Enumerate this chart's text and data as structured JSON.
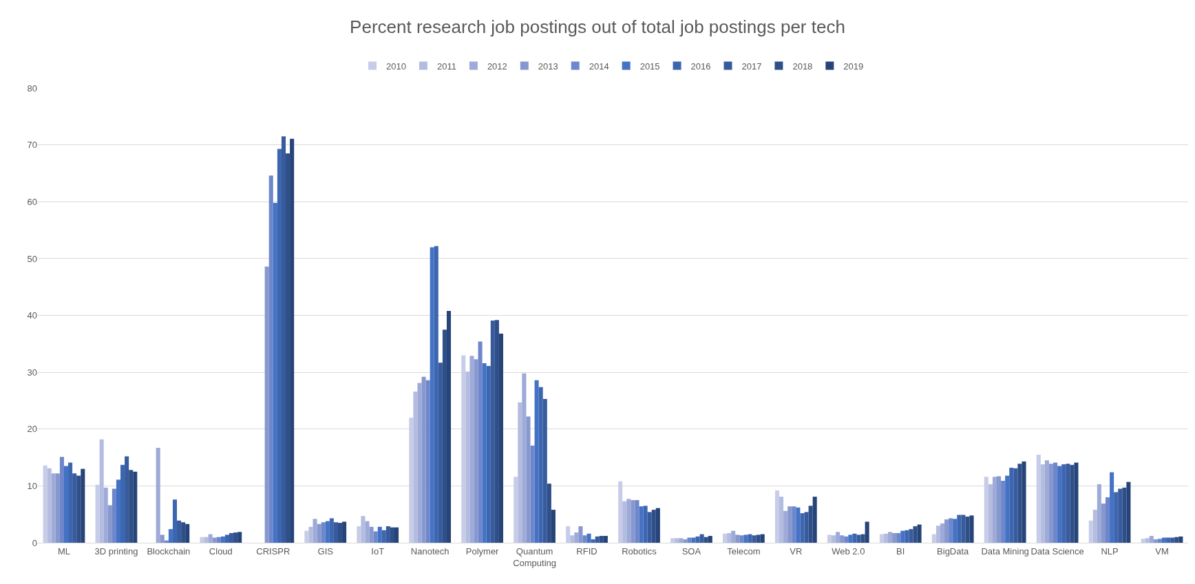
{
  "chart_data": {
    "type": "bar",
    "title": "Percent research job postings out of total job postings per tech",
    "categories": [
      "ML",
      "3D printing",
      "Blockchain",
      "Cloud",
      "CRISPR",
      "GIS",
      "IoT",
      "Nanotech",
      "Polymer",
      "Quantum Computing",
      "RFID",
      "Robotics",
      "SOA",
      "Telecom",
      "VR",
      "Web 2.0",
      "BI",
      "BigData",
      "Data Mining",
      "Data Science",
      "NLP",
      "VM"
    ],
    "series": [
      {
        "name": "2010",
        "color": "#c7cde8",
        "values": [
          13.6,
          10.2,
          null,
          1.0,
          null,
          2.1,
          2.9,
          22.0,
          33.0,
          11.6,
          2.9,
          10.8,
          0.8,
          1.6,
          9.2,
          1.4,
          1.5,
          1.5,
          11.6,
          15.5,
          3.9,
          0.7
        ]
      },
      {
        "name": "2011",
        "color": "#b4bde0",
        "values": [
          13.1,
          18.2,
          null,
          1.0,
          null,
          2.8,
          4.7,
          26.6,
          30.1,
          24.7,
          1.3,
          7.3,
          0.8,
          1.7,
          8.1,
          1.3,
          1.6,
          3.0,
          10.3,
          13.8,
          5.8,
          0.8
        ]
      },
      {
        "name": "2012",
        "color": "#9eaad8",
        "values": [
          12.2,
          9.7,
          16.7,
          1.5,
          null,
          4.2,
          3.8,
          28.1,
          32.9,
          29.8,
          1.8,
          7.7,
          0.8,
          2.1,
          5.6,
          1.9,
          1.9,
          3.4,
          11.6,
          14.5,
          10.3,
          1.2
        ]
      },
      {
        "name": "2013",
        "color": "#8798cf",
        "values": [
          12.2,
          6.6,
          1.4,
          0.9,
          48.6,
          3.3,
          2.8,
          29.2,
          32.3,
          22.2,
          2.9,
          7.5,
          0.6,
          1.4,
          6.4,
          1.3,
          1.7,
          4.1,
          11.7,
          13.9,
          6.9,
          0.6
        ]
      },
      {
        "name": "2014",
        "color": "#6e87cc",
        "values": [
          15.1,
          9.5,
          0.4,
          1.0,
          64.6,
          3.6,
          2.0,
          28.6,
          35.4,
          17.1,
          1.3,
          7.5,
          0.9,
          1.3,
          6.4,
          1.1,
          1.7,
          4.3,
          10.9,
          14.1,
          8.0,
          0.7
        ]
      },
      {
        "name": "2015",
        "color": "#4472c4",
        "values": [
          13.5,
          11.1,
          2.4,
          1.1,
          59.8,
          3.8,
          2.8,
          52.0,
          31.6,
          28.6,
          1.6,
          6.4,
          0.9,
          1.4,
          6.2,
          1.4,
          2.1,
          4.2,
          11.8,
          13.5,
          12.4,
          0.9
        ]
      },
      {
        "name": "2016",
        "color": "#3d66b0",
        "values": [
          14.1,
          13.7,
          7.6,
          1.4,
          69.3,
          4.3,
          2.2,
          52.2,
          31.1,
          27.4,
          0.6,
          6.5,
          1.1,
          1.5,
          5.2,
          1.6,
          2.2,
          4.9,
          13.2,
          13.8,
          8.9,
          0.9
        ]
      },
      {
        "name": "2017",
        "color": "#375b9c",
        "values": [
          12.2,
          15.2,
          3.9,
          1.7,
          71.5,
          3.6,
          2.9,
          31.7,
          39.1,
          25.3,
          1.1,
          5.4,
          1.5,
          1.3,
          5.4,
          1.4,
          2.4,
          4.9,
          13.1,
          13.9,
          9.5,
          0.9
        ]
      },
      {
        "name": "2018",
        "color": "#2f4f89",
        "values": [
          11.8,
          12.8,
          3.6,
          1.8,
          68.5,
          3.5,
          2.7,
          37.5,
          39.2,
          10.4,
          1.2,
          5.8,
          1.0,
          1.4,
          6.5,
          1.5,
          2.9,
          4.6,
          13.9,
          13.7,
          9.7,
          1.0
        ]
      },
      {
        "name": "2019",
        "color": "#264478",
        "values": [
          13.0,
          12.5,
          3.3,
          1.9,
          71.1,
          3.7,
          2.7,
          40.8,
          36.8,
          5.8,
          1.2,
          6.1,
          1.2,
          1.5,
          8.1,
          3.7,
          3.2,
          4.8,
          14.3,
          14.1,
          10.7,
          1.1
        ]
      }
    ],
    "ylim": [
      0,
      80
    ],
    "yticks": [
      0,
      10,
      20,
      30,
      40,
      50,
      60,
      70,
      80
    ],
    "grid": "y",
    "legend": "top"
  }
}
